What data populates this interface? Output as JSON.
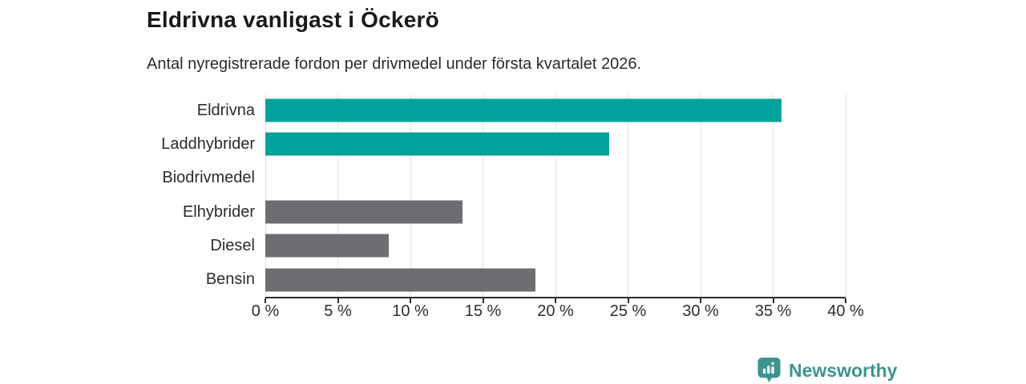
{
  "chart_data": {
    "type": "bar",
    "orientation": "horizontal",
    "title": "Eldrivna vanligast i Öckerö",
    "subtitle": "Antal nyregistrerade fordon per drivmedel under första kvartalet 2026.",
    "categories": [
      "Eldrivna",
      "Laddhybrider",
      "Biodrivmedel",
      "Elhybrider",
      "Diesel",
      "Bensin"
    ],
    "values": [
      35.6,
      23.7,
      0,
      13.6,
      8.5,
      18.6
    ],
    "unit": "%",
    "xlabel": "",
    "ylabel": "",
    "xlim": [
      0,
      40
    ],
    "ticks": [
      0,
      5,
      10,
      15,
      20,
      25,
      30,
      35,
      40
    ],
    "tick_labels": [
      "0 %",
      "5 %",
      "10 %",
      "15 %",
      "20 %",
      "25 %",
      "30 %",
      "35 %",
      "40 %"
    ],
    "grid": true,
    "legend": "none",
    "colors": {
      "highlight": "#00a39c",
      "default": "#6e6e72",
      "gridline": "#e3e3e3",
      "axis": "#2f2f2f"
    },
    "series_colors": [
      "#00a39c",
      "#00a39c",
      "#6e6e72",
      "#6e6e72",
      "#6e6e72",
      "#6e6e72"
    ]
  },
  "branding": {
    "logo_text": "Newsworthy",
    "logo_icon": "newsworthy-pin-barchart-icon",
    "logo_color": "#3a958e"
  }
}
